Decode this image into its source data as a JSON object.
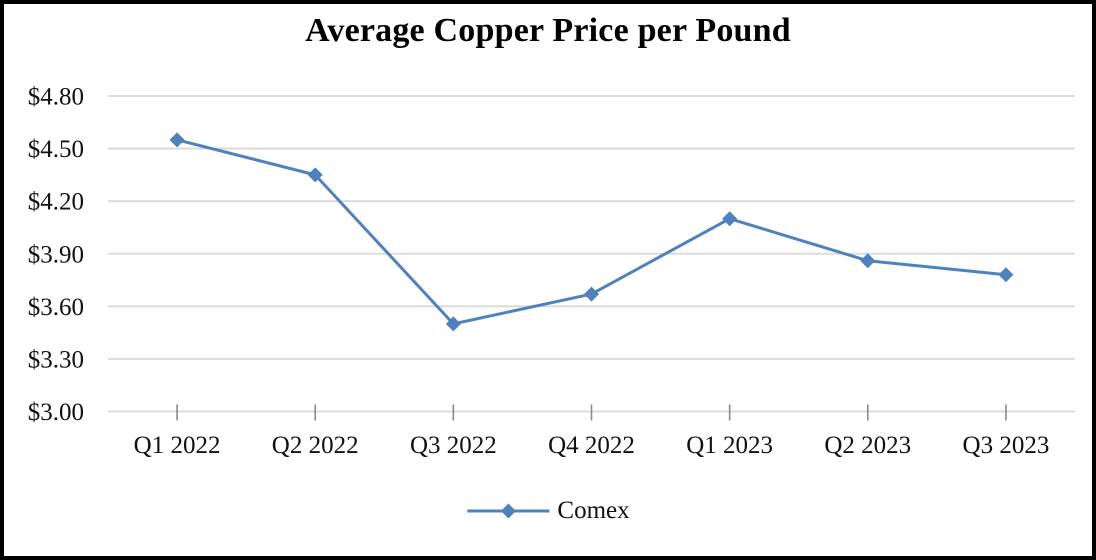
{
  "chart": {
    "title": "Average Copper Price per Pound",
    "legend": {
      "label": "Comex"
    }
  },
  "chart_data": {
    "type": "line",
    "title": "Average Copper Price per Pound",
    "categories": [
      "Q1 2022",
      "Q2 2022",
      "Q3 2022",
      "Q4 2022",
      "Q1 2023",
      "Q2 2023",
      "Q3 2023"
    ],
    "series": [
      {
        "name": "Comex",
        "values": [
          4.55,
          4.35,
          3.5,
          3.67,
          4.1,
          3.86,
          3.78
        ]
      }
    ],
    "xlabel": "",
    "ylabel": "",
    "ylim": [
      3.0,
      4.8
    ],
    "ytick_step": 0.3,
    "ytick_labels": [
      "$3.00",
      "$3.30",
      "$3.60",
      "$3.90",
      "$4.20",
      "$4.50",
      "$4.80"
    ],
    "grid": true,
    "legend_position": "bottom",
    "marker": "diamond",
    "colors": {
      "series": "#4F81BD",
      "gridline": "#D9D9D9",
      "axis_tick": "#898989",
      "text": "#111111"
    }
  }
}
